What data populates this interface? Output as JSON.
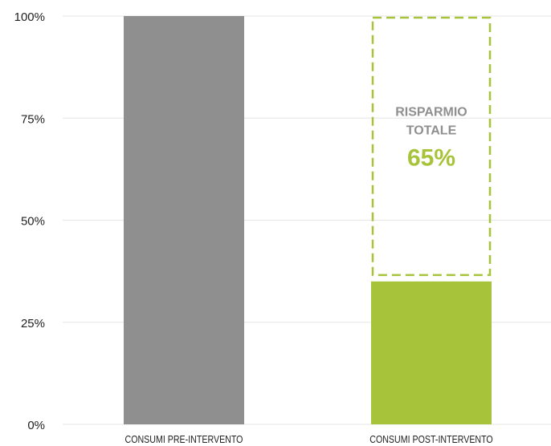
{
  "chart_data": {
    "type": "bar",
    "categories": [
      "CONSUMI PRE-INTERVENTO",
      "CONSUMI POST-INTERVENTO"
    ],
    "values": [
      100,
      35
    ],
    "ylim": [
      0,
      100
    ],
    "yticks": [
      0,
      25,
      50,
      75,
      100
    ],
    "ytick_labels": [
      "0%",
      "25%",
      "50%",
      "75%",
      "100%"
    ],
    "grid": true,
    "colors": {
      "pre": "#8f8f8f",
      "post": "#a7c33a",
      "savings_border": "#a7c33a",
      "annotation_text": "#8f8f8f",
      "annotation_value": "#a7c33a",
      "grid": "#e6e6e6",
      "axis_text": "#222222"
    },
    "annotations": [
      {
        "category": "CONSUMI POST-INTERVENTO",
        "from": 35,
        "to": 100,
        "label_line1": "RISPARMIO",
        "label_line2": "TOTALE",
        "value_label": "65%"
      }
    ]
  }
}
